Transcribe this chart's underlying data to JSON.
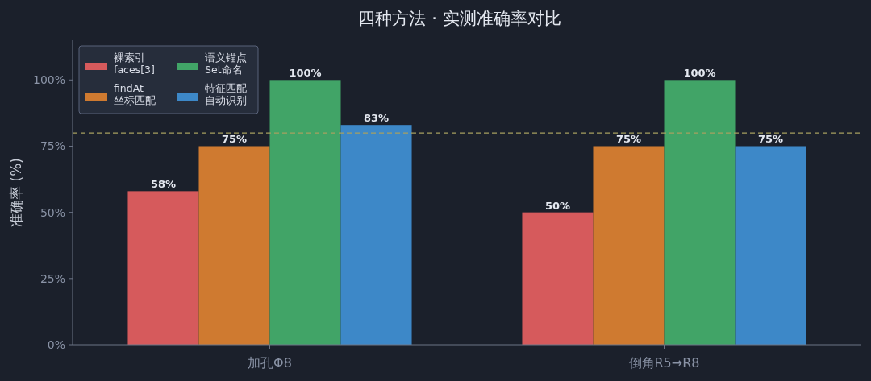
{
  "chart_data": {
    "type": "bar",
    "title": "四种方法 · 实测准确率对比",
    "ylabel": "准确率 (%)",
    "categories": [
      "加孔Φ8",
      "倒角R5→R8"
    ],
    "series": [
      {
        "name": "裸索引\nfaces[3]",
        "color": "#d65a5c",
        "values": [
          58,
          50
        ],
        "value_labels": [
          "58%",
          "50%"
        ]
      },
      {
        "name": "findAt\n坐标匹配",
        "color": "#cf7a30",
        "values": [
          75,
          75
        ],
        "value_labels": [
          "75%",
          "75%"
        ]
      },
      {
        "name": "语义锚点\nSet命名",
        "color": "#41a467",
        "values": [
          100,
          100
        ],
        "value_labels": [
          "100%",
          "100%"
        ]
      },
      {
        "name": "特征匹配自动识别",
        "color": "#3d88c8",
        "values": [
          83,
          75
        ],
        "value_labels": [
          "83%",
          "75%"
        ]
      }
    ],
    "ylim": [
      0,
      115
    ],
    "yticks": [
      {
        "value": 0,
        "label": "0%"
      },
      {
        "value": 25,
        "label": "25%"
      },
      {
        "value": 50,
        "label": "50%"
      },
      {
        "value": 75,
        "label": "75%"
      },
      {
        "value": 100,
        "label": "100%"
      }
    ],
    "ref_lines": [
      {
        "axis": "y",
        "value": 80,
        "color": "#a8a060",
        "line_style": "dashed"
      }
    ],
    "legend": "top left",
    "grid": false
  }
}
